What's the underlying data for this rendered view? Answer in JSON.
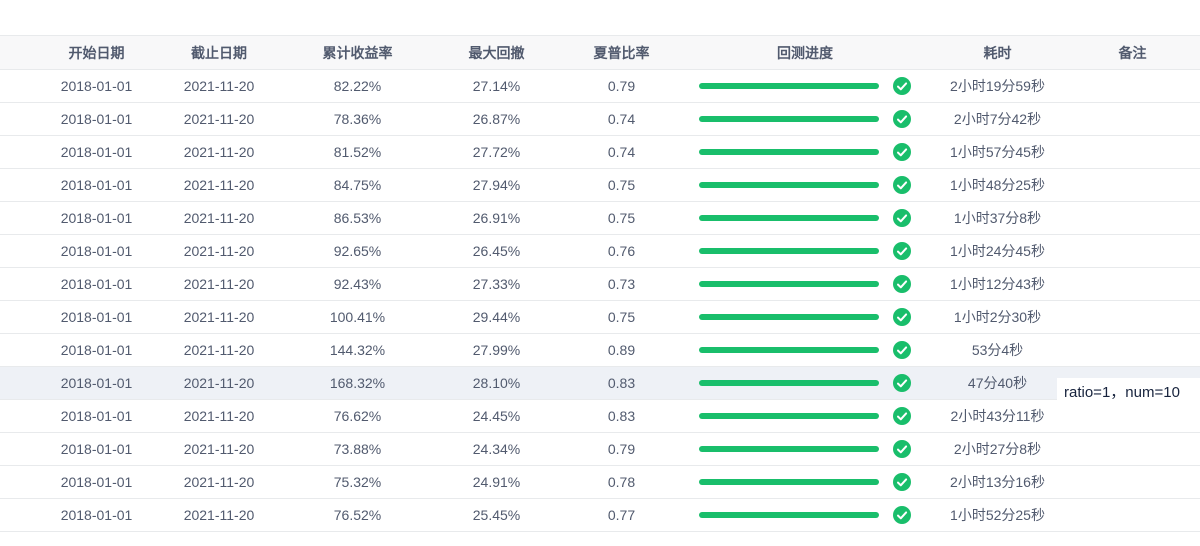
{
  "table": {
    "columns": [
      {
        "key": "start_date",
        "label": "开始日期"
      },
      {
        "key": "end_date",
        "label": "截止日期"
      },
      {
        "key": "cum_return",
        "label": "累计收益率"
      },
      {
        "key": "max_drawdown",
        "label": "最大回撤"
      },
      {
        "key": "sharpe",
        "label": "夏普比率"
      },
      {
        "key": "progress",
        "label": "回测进度"
      },
      {
        "key": "elapsed",
        "label": "耗时"
      },
      {
        "key": "note",
        "label": "备注"
      }
    ],
    "rows": [
      {
        "start_date": "2018-01-01",
        "end_date": "2021-11-20",
        "cum_return": "82.22%",
        "max_drawdown": "27.14%",
        "sharpe": "0.79",
        "progress_percent": 100,
        "status": "success",
        "elapsed": "2小时19分59秒",
        "note": "",
        "highlighted": false
      },
      {
        "start_date": "2018-01-01",
        "end_date": "2021-11-20",
        "cum_return": "78.36%",
        "max_drawdown": "26.87%",
        "sharpe": "0.74",
        "progress_percent": 100,
        "status": "success",
        "elapsed": "2小时7分42秒",
        "note": "",
        "highlighted": false
      },
      {
        "start_date": "2018-01-01",
        "end_date": "2021-11-20",
        "cum_return": "81.52%",
        "max_drawdown": "27.72%",
        "sharpe": "0.74",
        "progress_percent": 100,
        "status": "success",
        "elapsed": "1小时57分45秒",
        "note": "",
        "highlighted": false
      },
      {
        "start_date": "2018-01-01",
        "end_date": "2021-11-20",
        "cum_return": "84.75%",
        "max_drawdown": "27.94%",
        "sharpe": "0.75",
        "progress_percent": 100,
        "status": "success",
        "elapsed": "1小时48分25秒",
        "note": "",
        "highlighted": false
      },
      {
        "start_date": "2018-01-01",
        "end_date": "2021-11-20",
        "cum_return": "86.53%",
        "max_drawdown": "26.91%",
        "sharpe": "0.75",
        "progress_percent": 100,
        "status": "success",
        "elapsed": "1小时37分8秒",
        "note": "",
        "highlighted": false
      },
      {
        "start_date": "2018-01-01",
        "end_date": "2021-11-20",
        "cum_return": "92.65%",
        "max_drawdown": "26.45%",
        "sharpe": "0.76",
        "progress_percent": 100,
        "status": "success",
        "elapsed": "1小时24分45秒",
        "note": "",
        "highlighted": false
      },
      {
        "start_date": "2018-01-01",
        "end_date": "2021-11-20",
        "cum_return": "92.43%",
        "max_drawdown": "27.33%",
        "sharpe": "0.73",
        "progress_percent": 100,
        "status": "success",
        "elapsed": "1小时12分43秒",
        "note": "",
        "highlighted": false
      },
      {
        "start_date": "2018-01-01",
        "end_date": "2021-11-20",
        "cum_return": "100.41%",
        "max_drawdown": "29.44%",
        "sharpe": "0.75",
        "progress_percent": 100,
        "status": "success",
        "elapsed": "1小时2分30秒",
        "note": "",
        "highlighted": false
      },
      {
        "start_date": "2018-01-01",
        "end_date": "2021-11-20",
        "cum_return": "144.32%",
        "max_drawdown": "27.99%",
        "sharpe": "0.89",
        "progress_percent": 100,
        "status": "success",
        "elapsed": "53分4秒",
        "note": "",
        "highlighted": false
      },
      {
        "start_date": "2018-01-01",
        "end_date": "2021-11-20",
        "cum_return": "168.32%",
        "max_drawdown": "28.10%",
        "sharpe": "0.83",
        "progress_percent": 100,
        "status": "success",
        "elapsed": "47分40秒",
        "note": "ratio=1，num=10",
        "highlighted": true
      },
      {
        "start_date": "2018-01-01",
        "end_date": "2021-11-20",
        "cum_return": "76.62%",
        "max_drawdown": "24.45%",
        "sharpe": "0.83",
        "progress_percent": 100,
        "status": "success",
        "elapsed": "2小时43分11秒",
        "note": "",
        "highlighted": false
      },
      {
        "start_date": "2018-01-01",
        "end_date": "2021-11-20",
        "cum_return": "73.88%",
        "max_drawdown": "24.34%",
        "sharpe": "0.79",
        "progress_percent": 100,
        "status": "success",
        "elapsed": "2小时27分8秒",
        "note": "",
        "highlighted": false
      },
      {
        "start_date": "2018-01-01",
        "end_date": "2021-11-20",
        "cum_return": "75.32%",
        "max_drawdown": "24.91%",
        "sharpe": "0.78",
        "progress_percent": 100,
        "status": "success",
        "elapsed": "2小时13分16秒",
        "note": "",
        "highlighted": false
      },
      {
        "start_date": "2018-01-01",
        "end_date": "2021-11-20",
        "cum_return": "76.52%",
        "max_drawdown": "25.45%",
        "sharpe": "0.77",
        "progress_percent": 100,
        "status": "success",
        "elapsed": "1小时52分25秒",
        "note": "",
        "highlighted": false
      }
    ]
  },
  "note_tooltip": {
    "text": "ratio=1，num=10",
    "row_index": 9
  },
  "colors": {
    "progress_green": "#19be6b",
    "check_icon_green": "#19be6b",
    "header_bg": "#f8f8f9",
    "row_highlight_bg": "#eef1f6",
    "border": "#e8eaec",
    "text": "#515a6e"
  }
}
